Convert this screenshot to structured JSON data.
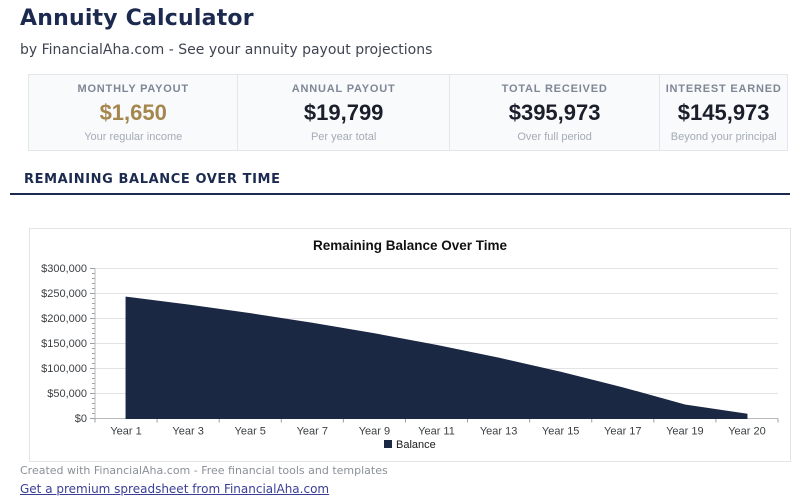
{
  "page": {
    "title": "Annuity Calculator",
    "subtitle": "by FinancialAha.com - See your annuity payout projections"
  },
  "stats": [
    {
      "label": "MONTHLY PAYOUT",
      "value": "$1,650",
      "sublabel": "Your regular income"
    },
    {
      "label": "ANNUAL PAYOUT",
      "value": "$19,799",
      "sublabel": "Per year total"
    },
    {
      "label": "TOTAL RECEIVED",
      "value": "$395,973",
      "sublabel": "Over full period"
    },
    {
      "label": "INTEREST EARNED",
      "value": "$145,973",
      "sublabel": "Beyond your principal"
    }
  ],
  "section": {
    "heading": "REMAINING BALANCE OVER TIME"
  },
  "chart_data": {
    "type": "area",
    "title": "Remaining Balance Over Time",
    "categories": [
      "Year 1",
      "Year 3",
      "Year 5",
      "Year 7",
      "Year 9",
      "Year 11",
      "Year 13",
      "Year 15",
      "Year 17",
      "Year 19",
      "Year 20"
    ],
    "series": [
      {
        "name": "Balance",
        "values": [
          242701,
          226990,
          209669,
          190572,
          169518,
          146306,
          120714,
          92500,
          61393,
          27098,
          8654
        ]
      }
    ],
    "xlabel": "",
    "ylabel": "",
    "ylim": [
      0,
      300000
    ],
    "y_major_step": 50000,
    "y_minor_step": 10000,
    "y_tick_labels": [
      "$0",
      "$50,000",
      "$100,000",
      "$150,000",
      "$200,000",
      "$250,000",
      "$300,000"
    ],
    "grid": true,
    "legend_position": "bottom",
    "area_color": "#1b2844",
    "grid_color": "#e3e3e3",
    "axis_color": "#b9b9b9",
    "tick_color": "#9aa0a6",
    "label_color": "#3c4043",
    "title_color": "#111111"
  },
  "footer": {
    "created": "Created with FinancialAha.com - Free financial tools and templates",
    "link": "Get a premium spreadsheet from FinancialAha.com"
  },
  "colors": {
    "brand_navy": "#1b2a4e",
    "accent_gold": "#a5864e",
    "card_bg": "#f9fafb",
    "card_border": "#e4e7ea",
    "link_blue": "#3a3f96"
  }
}
